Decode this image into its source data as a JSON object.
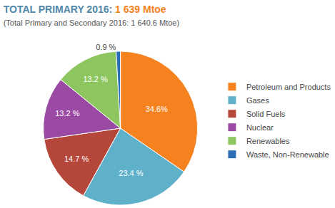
{
  "chart_data": {
    "type": "pie",
    "title": "TOTAL PRIMARY 2016: 1 639 Mtoe",
    "subtitle": "(Total Primary and Secondary 2016: 1 640.6 Mtoe)",
    "categories": [
      "Petroleum and Products",
      "Gases",
      "Solid Fuels",
      "Nuclear",
      "Renewables",
      "Waste, Non-Renewable"
    ],
    "values": [
      34.6,
      23.4,
      14.7,
      13.2,
      13.2,
      0.9
    ],
    "value_labels": [
      "34.6%",
      "23.4 %",
      "14.7 %",
      "13.2 %",
      "13.2 %",
      "0.9 %"
    ],
    "colors": [
      "#f5821f",
      "#5fb1c9",
      "#b5473a",
      "#9b4aa3",
      "#8dc55f",
      "#2a6fb5"
    ],
    "data_labels": true,
    "legend": "right"
  }
}
